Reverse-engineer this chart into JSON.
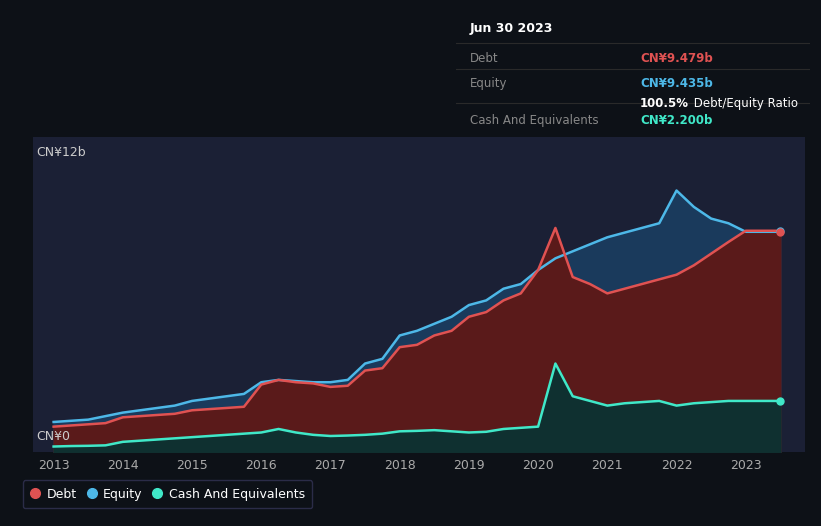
{
  "background_color": "#0d1117",
  "plot_bg": "#1b2035",
  "grid_color": "#2a3050",
  "years_x": [
    2013.0,
    2013.25,
    2013.5,
    2013.75,
    2014.0,
    2014.25,
    2014.5,
    2014.75,
    2015.0,
    2015.25,
    2015.5,
    2015.75,
    2016.0,
    2016.25,
    2016.5,
    2016.75,
    2017.0,
    2017.25,
    2017.5,
    2017.75,
    2018.0,
    2018.25,
    2018.5,
    2018.75,
    2019.0,
    2019.25,
    2019.5,
    2019.75,
    2020.0,
    2020.25,
    2020.5,
    2020.75,
    2021.0,
    2021.25,
    2021.5,
    2021.75,
    2022.0,
    2022.25,
    2022.5,
    2022.75,
    2023.0,
    2023.5
  ],
  "debt": [
    1.1,
    1.15,
    1.2,
    1.25,
    1.5,
    1.55,
    1.6,
    1.65,
    1.8,
    1.85,
    1.9,
    1.95,
    2.9,
    3.1,
    3.0,
    2.95,
    2.8,
    2.85,
    3.5,
    3.6,
    4.5,
    4.6,
    5.0,
    5.2,
    5.8,
    6.0,
    6.5,
    6.8,
    7.8,
    9.6,
    7.5,
    7.2,
    6.8,
    7.0,
    7.2,
    7.4,
    7.6,
    8.0,
    8.5,
    9.0,
    9.479,
    9.479
  ],
  "equity": [
    1.3,
    1.35,
    1.4,
    1.55,
    1.7,
    1.8,
    1.9,
    2.0,
    2.2,
    2.3,
    2.4,
    2.5,
    3.0,
    3.1,
    3.05,
    3.0,
    3.0,
    3.1,
    3.8,
    4.0,
    5.0,
    5.2,
    5.5,
    5.8,
    6.3,
    6.5,
    7.0,
    7.2,
    7.8,
    8.3,
    8.6,
    8.9,
    9.2,
    9.4,
    9.6,
    9.8,
    11.2,
    10.5,
    10.0,
    9.8,
    9.435,
    9.435
  ],
  "cash": [
    0.25,
    0.27,
    0.28,
    0.3,
    0.45,
    0.5,
    0.55,
    0.6,
    0.65,
    0.7,
    0.75,
    0.8,
    0.85,
    1.0,
    0.85,
    0.75,
    0.7,
    0.72,
    0.75,
    0.8,
    0.9,
    0.92,
    0.95,
    0.9,
    0.85,
    0.88,
    1.0,
    1.05,
    1.1,
    3.8,
    2.4,
    2.2,
    2.0,
    2.1,
    2.15,
    2.2,
    2.0,
    2.1,
    2.15,
    2.2,
    2.2,
    2.2
  ],
  "debt_color": "#e05252",
  "equity_color": "#4db8e8",
  "cash_color": "#40e8c8",
  "debt_fill": "#5a1a1a",
  "equity_fill": "#1a3a5c",
  "cash_fill": "#0f3030",
  "xlim": [
    2012.7,
    2023.85
  ],
  "ylim": [
    0,
    13.5
  ],
  "xlabel_ticks": [
    2013,
    2014,
    2015,
    2016,
    2017,
    2018,
    2019,
    2020,
    2021,
    2022,
    2023
  ],
  "ylabel_top": "CN¥12b",
  "ylabel_bottom": "CN¥0",
  "tooltip_title": "Jun 30 2023",
  "tooltip_debt_label": "Debt",
  "tooltip_debt_val": "CN¥9.479b",
  "tooltip_equity_label": "Equity",
  "tooltip_equity_val": "CN¥9.435b",
  "tooltip_ratio_bold": "100.5%",
  "tooltip_ratio_rest": " Debt/Equity Ratio",
  "tooltip_cash_label": "Cash And Equivalents",
  "tooltip_cash_val": "CN¥2.200b",
  "legend_debt": "Debt",
  "legend_equity": "Equity",
  "legend_cash": "Cash And Equivalents"
}
